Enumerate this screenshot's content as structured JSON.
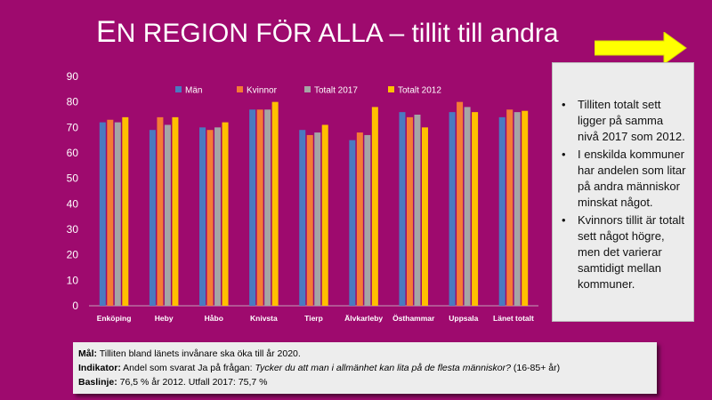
{
  "slide": {
    "title_cap": "E",
    "title_rest": "N REGION FÖR ALLA",
    "title_suffix": " – tillit till andra"
  },
  "colors": {
    "background": "#9e0a6e",
    "arrow": "#ffff00",
    "series": [
      "#4a7ac0",
      "#f47b35",
      "#a5a5a5",
      "#ffc000"
    ]
  },
  "chart_data": {
    "type": "bar",
    "categories": [
      "Enköping",
      "Heby",
      "Håbo",
      "Knivsta",
      "Tierp",
      "Älvkarleby",
      "Östhammar",
      "Uppsala",
      "Länet totalt"
    ],
    "series": [
      {
        "name": "Män",
        "values": [
          72,
          69,
          70,
          77,
          69,
          65,
          76,
          76,
          74
        ]
      },
      {
        "name": "Kvinnor",
        "values": [
          73,
          74,
          69,
          77,
          67,
          68,
          74,
          80,
          77
        ]
      },
      {
        "name": "Totalt 2017",
        "values": [
          72,
          71,
          70,
          77,
          68,
          67,
          75,
          78,
          76
        ]
      },
      {
        "name": "Totalt 2012",
        "values": [
          74,
          74,
          72,
          80,
          71,
          78,
          70,
          76,
          76.5
        ]
      }
    ],
    "yticks": [
      "0",
      "10",
      "20",
      "30",
      "40",
      "50",
      "60",
      "70",
      "80",
      "90"
    ],
    "ylim": [
      0,
      90
    ],
    "title": "",
    "xlabel": "",
    "ylabel": "",
    "legend_position": "top-left",
    "grid": false
  },
  "bullets": [
    "Tilliten totalt sett ligger på samma nivå 2017 som 2012.",
    "I enskilda kommuner har andelen som litar på andra människor minskat något.",
    "Kvinnors tillit är totalt sett något högre, men det varierar samtidigt mellan kommuner."
  ],
  "info": {
    "goal_label": "Mål:",
    "goal_text": " Tilliten bland länets invånare ska öka till år 2020.",
    "indicator_label": "Indikator:",
    "indicator_text": " Andel som svarat Ja på frågan: ",
    "indicator_question": "Tycker du att man i allmänhet kan lita på de flesta människor?",
    "indicator_suffix": " (16-85+ år)",
    "baseline_label": "Baslinje:",
    "baseline_text": " 76,5 % år 2012. Utfall 2017: 75,7 %"
  }
}
